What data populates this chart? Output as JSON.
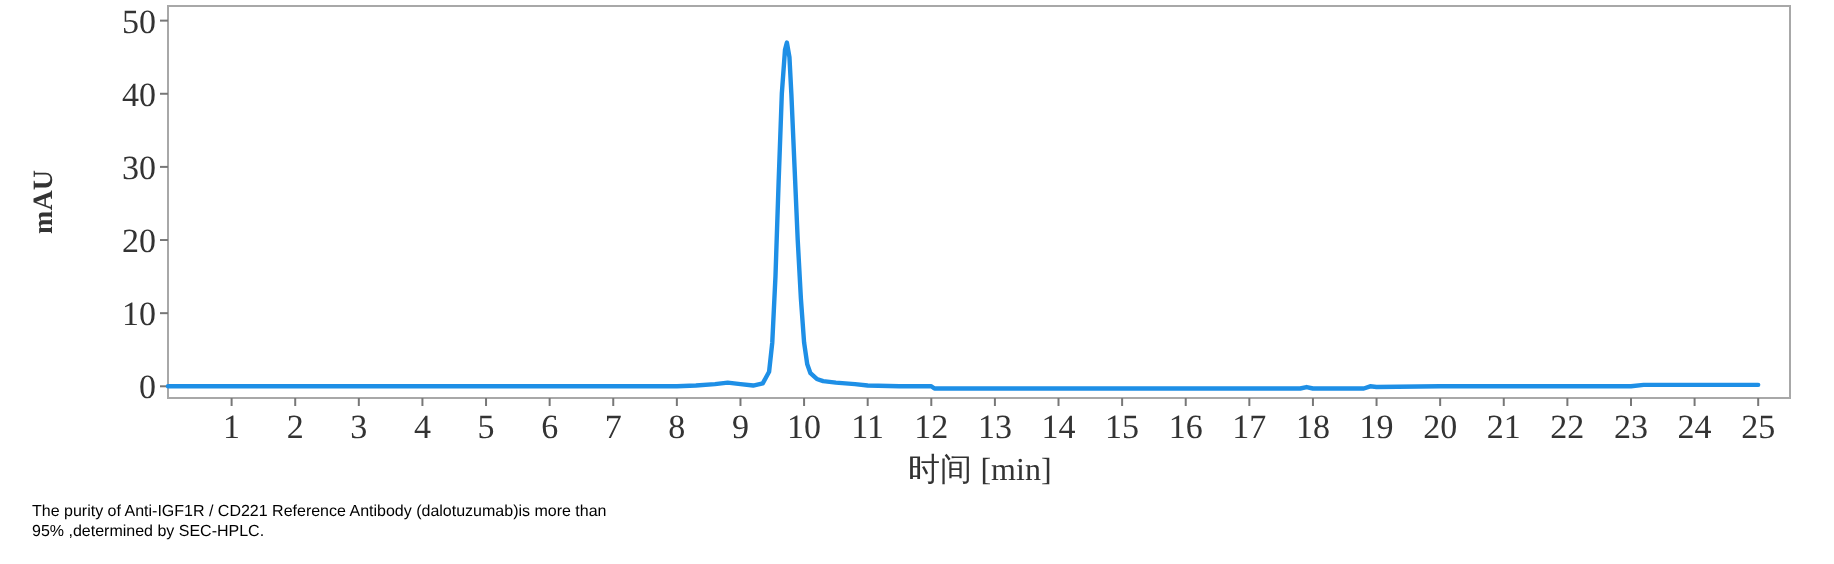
{
  "chart_data": {
    "type": "line",
    "color": "#1e8fe6",
    "xlabel": "时间 [min]",
    "ylabel": "mAU",
    "xlim": [
      0,
      25.5
    ],
    "ylim": [
      -1.6,
      52
    ],
    "xticks": [
      1,
      2,
      3,
      4,
      5,
      6,
      7,
      8,
      9,
      10,
      11,
      12,
      13,
      14,
      15,
      16,
      17,
      18,
      19,
      20,
      21,
      22,
      23,
      24,
      25
    ],
    "yticks": [
      0,
      10,
      20,
      30,
      40,
      50
    ],
    "x": [
      0,
      2,
      4,
      6,
      8,
      8.3,
      8.6,
      8.8,
      9.0,
      9.2,
      9.35,
      9.45,
      9.5,
      9.55,
      9.6,
      9.65,
      9.7,
      9.73,
      9.77,
      9.8,
      9.85,
      9.9,
      9.95,
      10.0,
      10.05,
      10.1,
      10.2,
      10.3,
      10.5,
      10.8,
      11.0,
      11.5,
      12.0,
      12.05,
      15,
      17.8,
      17.9,
      18.0,
      18.8,
      18.9,
      19.0,
      20,
      23.0,
      23.2,
      24,
      25
    ],
    "values": [
      0,
      0,
      0,
      0,
      0,
      0.1,
      0.3,
      0.5,
      0.3,
      0.1,
      0.4,
      2,
      6,
      15,
      28,
      40,
      46,
      47,
      45,
      40,
      30,
      20,
      12,
      6,
      3,
      1.8,
      1.0,
      0.7,
      0.5,
      0.3,
      0.1,
      0,
      0,
      -0.3,
      -0.3,
      -0.3,
      -0.1,
      -0.3,
      -0.3,
      0,
      -0.1,
      0,
      0,
      0.2,
      0.2,
      0.2
    ],
    "annotations": [
      "The purity of Anti-IGF1R / CD221 Reference Antibody (dalotuzumab)is more than 95% ,determined by SEC-HPLC."
    ]
  }
}
